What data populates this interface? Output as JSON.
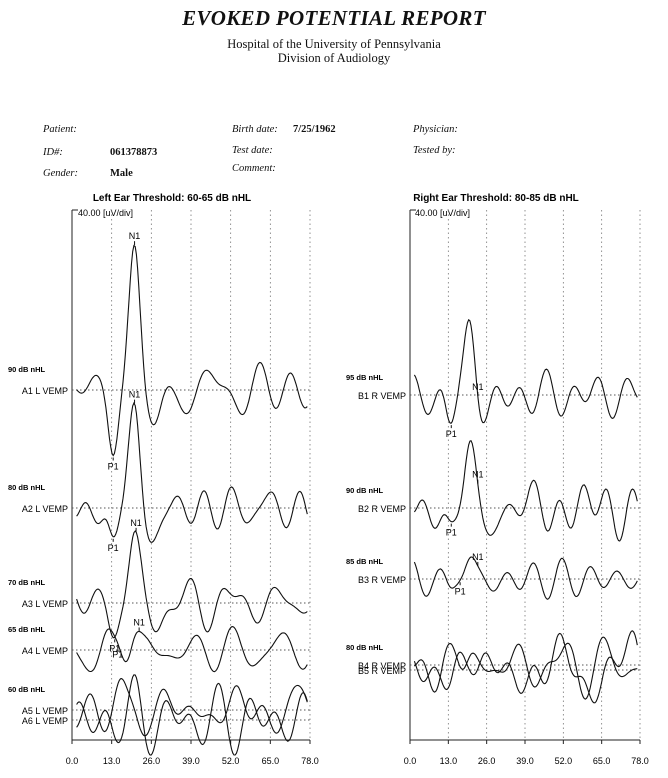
{
  "header": {
    "title": "EVOKED POTENTIAL REPORT",
    "hospital": "Hospital of the University of Pennsylvania",
    "division": "Division of Audiology"
  },
  "patient_info": {
    "patient_label": "Patient:",
    "id_label": "ID#:",
    "id_value": "061378873",
    "gender_label": "Gender:",
    "gender_value": "Male",
    "birth_date_label": "Birth date:",
    "birth_date_value": "7/25/1962",
    "test_date_label": "Test date:",
    "comment_label": "Comment:",
    "physician_label": "Physician:",
    "tested_by_label": "Tested by:"
  },
  "chart_data": [
    {
      "type": "line",
      "title": "Left Ear Threshold: 60-65 dB nHL",
      "scale_label": "40.00 [uV/div]",
      "x_ticks": [
        "0.0",
        "13.0",
        "26.0",
        "39.0",
        "52.0",
        "65.0",
        "78.0"
      ],
      "xlim": [
        0,
        78
      ],
      "series": [
        {
          "level": "90 dB nHL",
          "name": "A1 L VEMP",
          "peaks": [
            {
              "label": "P1",
              "x": 13.5
            },
            {
              "label": "N1",
              "x": 20.5
            }
          ]
        },
        {
          "level": "80 dB nHL",
          "name": "A2 L VEMP",
          "peaks": [
            {
              "label": "P1",
              "x": 13.5
            },
            {
              "label": "N1",
              "x": 20.5
            }
          ]
        },
        {
          "level": "70 dB nHL",
          "name": "A3 L VEMP",
          "peaks": [
            {
              "label": "P1",
              "x": 14
            },
            {
              "label": "N1",
              "x": 21
            }
          ]
        },
        {
          "level": "65 dB nHL",
          "name": "A4 L VEMP",
          "peaks": [
            {
              "label": "P1",
              "x": 15
            },
            {
              "label": "N1",
              "x": 22
            }
          ]
        },
        {
          "level": "60 dB nHL",
          "name": "A5 L VEMP",
          "peaks": []
        },
        {
          "level": "",
          "name": "A6 L VEMP",
          "peaks": []
        }
      ]
    },
    {
      "type": "line",
      "title": "Right Ear Threshold: 80-85 dB nHL",
      "scale_label": "40.00 [uV/div]",
      "x_ticks": [
        "0.0",
        "13.0",
        "26.0",
        "39.0",
        "52.0",
        "65.0",
        "78.0"
      ],
      "xlim": [
        0,
        78
      ],
      "series": [
        {
          "level": "95 dB nHL",
          "name": "B1 R VEMP",
          "peaks": [
            {
              "label": "P1",
              "x": 14
            },
            {
              "label": "N1",
              "x": 23
            }
          ]
        },
        {
          "level": "90 dB nHL",
          "name": "B2 R VEMP",
          "peaks": [
            {
              "label": "P1",
              "x": 14
            },
            {
              "label": "N1",
              "x": 23
            }
          ]
        },
        {
          "level": "85 dB nHL",
          "name": "B3 R VEMP",
          "peaks": [
            {
              "label": "P1",
              "x": 17
            },
            {
              "label": "N1",
              "x": 23
            }
          ]
        },
        {
          "level": "80 dB nHL",
          "name": "B4 R VEMP",
          "peaks": []
        },
        {
          "level": "",
          "name": "B5 R VEMP",
          "peaks": []
        }
      ]
    }
  ]
}
